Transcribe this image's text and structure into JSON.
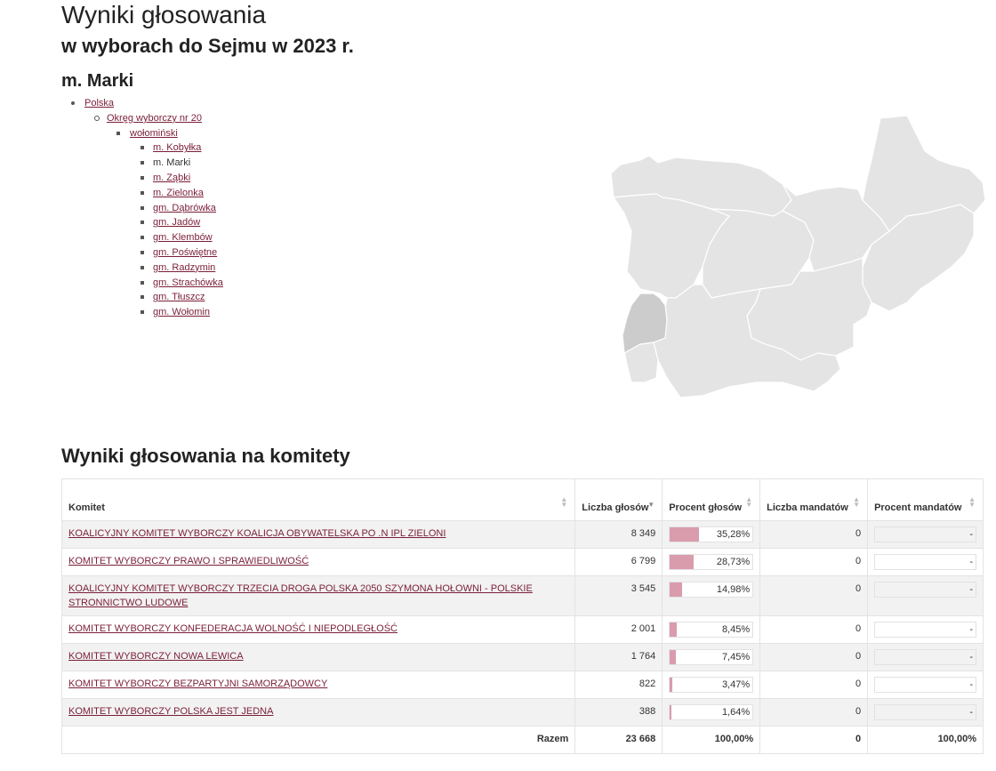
{
  "header": {
    "title": "Wyniki głosowania",
    "subtitle": "w wyborach do Sejmu w 2023 r.",
    "place": "m. Marki"
  },
  "tree": {
    "country": "Polska",
    "district": "Okręg wyborczy nr 20",
    "county": "wołomiński",
    "current": "m. Marki",
    "communes_before": [
      "m. Kobyłka"
    ],
    "communes_after": [
      "m. Ząbki",
      "m. Zielonka",
      "gm. Dąbrówka",
      "gm. Jadów",
      "gm. Klembów",
      "gm. Poświętne",
      "gm. Radzymin",
      "gm. Strachówka",
      "gm. Tłuszcz",
      "gm. Wołomin"
    ]
  },
  "colors": {
    "link": "#7a1f38",
    "bar_fill": "#d99cad",
    "map_region": "#e4e4e4",
    "map_selected": "#cccccc"
  },
  "section_title": "Wyniki głosowania na komitety",
  "table": {
    "headers": {
      "komitet": "Komitet",
      "liczba_glosow": "Liczba głosów",
      "procent_glosow": "Procent głosów",
      "liczba_mandatow": "Liczba mandatów",
      "procent_mandatow": "Procent mandatów"
    },
    "rows": [
      {
        "name": "KOALICYJNY KOMITET WYBORCZY KOALICJA OBYWATELSKA PO .N IPL ZIELONI",
        "votes": "8 349",
        "percent": "35,28%",
        "percent_value": 35.28,
        "seats": "0",
        "seats_percent": "-"
      },
      {
        "name": "KOMITET WYBORCZY PRAWO I SPRAWIEDLIWOŚĆ",
        "votes": "6 799",
        "percent": "28,73%",
        "percent_value": 28.73,
        "seats": "0",
        "seats_percent": "-"
      },
      {
        "name": "KOALICYJNY KOMITET WYBORCZY TRZECIA DROGA POLSKA 2050 SZYMONA HOŁOWNI - POLSKIE STRONNICTWO LUDOWE",
        "votes": "3 545",
        "percent": "14,98%",
        "percent_value": 14.98,
        "seats": "0",
        "seats_percent": "-"
      },
      {
        "name": "KOMITET WYBORCZY KONFEDERACJA WOLNOŚĆ I NIEPODLEGŁOŚĆ",
        "votes": "2 001",
        "percent": "8,45%",
        "percent_value": 8.45,
        "seats": "0",
        "seats_percent": "-"
      },
      {
        "name": "KOMITET WYBORCZY NOWA LEWICA",
        "votes": "1 764",
        "percent": "7,45%",
        "percent_value": 7.45,
        "seats": "0",
        "seats_percent": "-"
      },
      {
        "name": "KOMITET WYBORCZY BEZPARTYJNI SAMORZĄDOWCY",
        "votes": "822",
        "percent": "3,47%",
        "percent_value": 3.47,
        "seats": "0",
        "seats_percent": "-"
      },
      {
        "name": "KOMITET WYBORCZY POLSKA JEST JEDNA",
        "votes": "388",
        "percent": "1,64%",
        "percent_value": 1.64,
        "seats": "0",
        "seats_percent": "-"
      }
    ],
    "total": {
      "label": "Razem",
      "votes": "23 668",
      "percent": "100,00%",
      "seats": "0",
      "seats_percent": "100,00%"
    }
  }
}
